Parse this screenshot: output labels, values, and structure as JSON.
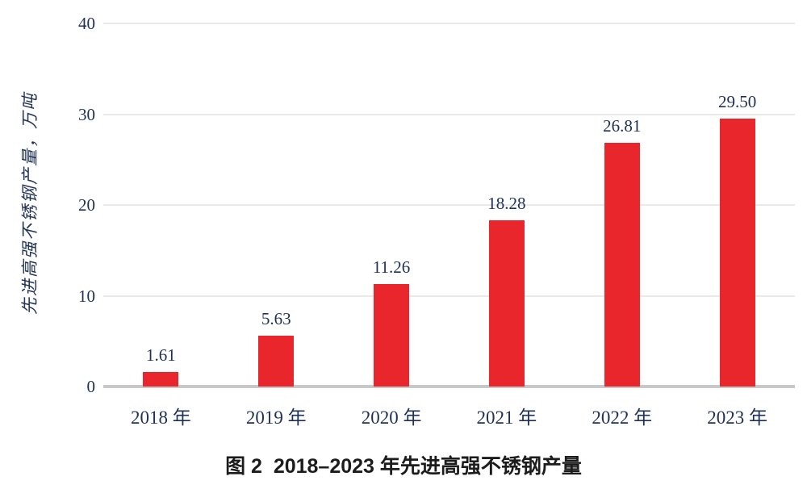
{
  "figure": {
    "caption": "图 2  2018–2023 年先进高强不锈钢产量"
  },
  "chart_data": {
    "type": "bar",
    "title": "图 2  2018–2023 年先进高强不锈钢产量",
    "categories": [
      "2018 年",
      "2019 年",
      "2020 年",
      "2021 年",
      "2022 年",
      "2023 年"
    ],
    "values": [
      1.61,
      5.63,
      11.26,
      18.28,
      26.81,
      29.5
    ],
    "value_labels": [
      "1.61",
      "5.63",
      "11.26",
      "18.28",
      "26.81",
      "29.50"
    ],
    "ylabel": "先进高强不锈钢产量，万吨",
    "xlabel": "",
    "ylim": [
      0,
      40
    ],
    "yticks": [
      0,
      10,
      20,
      30,
      40
    ],
    "grid": true,
    "legend_position": "none",
    "colors": {
      "bar": "#e8262b",
      "axis_text": "#1e3055",
      "gridline": "#e9e9e9",
      "baseline": "#c8c8c8",
      "caption_text": "#1c1c1c",
      "background": "#ffffff"
    }
  }
}
